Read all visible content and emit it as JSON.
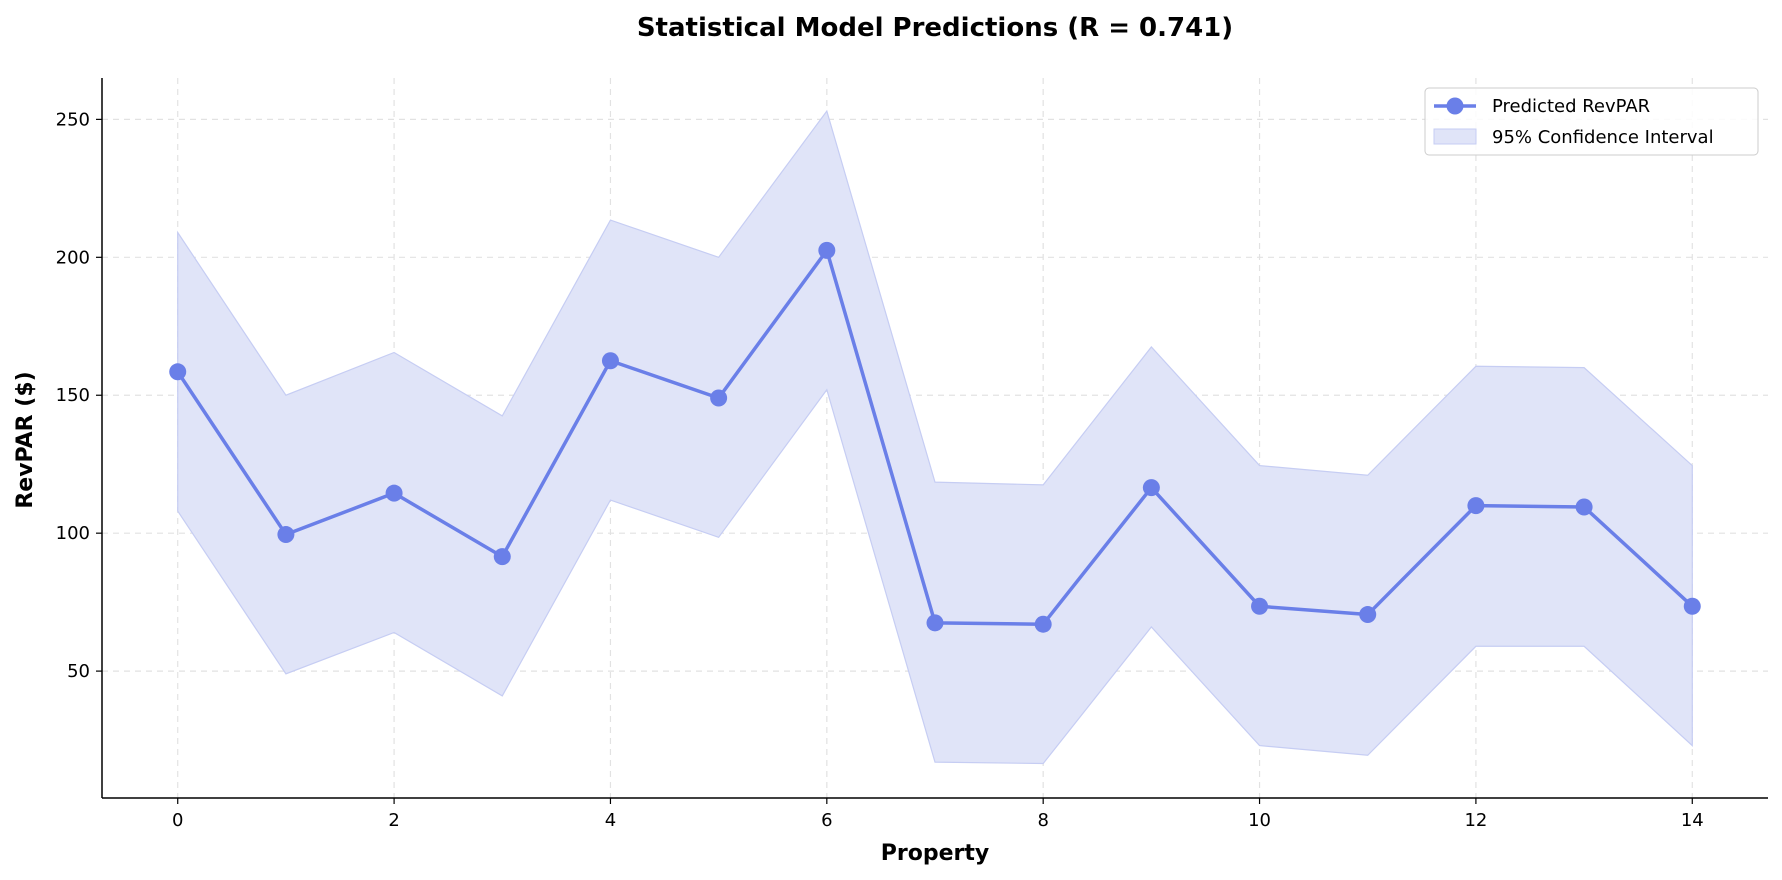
{
  "chart_data": {
    "type": "line",
    "title": "Statistical Model Predictions (R = 0.741)",
    "xlabel": "Property",
    "ylabel": "RevPAR ($)",
    "xlim": [
      -0.7,
      14.7
    ],
    "ylim": [
      4,
      265
    ],
    "grid": true,
    "legend_position": "top-right",
    "x_ticks": [
      0,
      2,
      4,
      6,
      8,
      10,
      12,
      14
    ],
    "y_ticks": [
      50,
      100,
      150,
      200,
      250
    ],
    "x": [
      0,
      1,
      2,
      3,
      4,
      5,
      6,
      7,
      8,
      9,
      10,
      11,
      12,
      13,
      14
    ],
    "series": [
      {
        "name": "Predicted RevPAR",
        "values": [
          158.5,
          99.5,
          114.5,
          91.5,
          162.5,
          149.0,
          202.5,
          67.5,
          67.0,
          116.5,
          73.5,
          70.5,
          110.0,
          109.5,
          73.5
        ]
      }
    ],
    "confidence_interval": {
      "name": "95% Confidence Interval",
      "upper": [
        209.0,
        150.0,
        165.5,
        142.5,
        213.5,
        200.0,
        253.0,
        118.5,
        117.5,
        167.5,
        124.5,
        121.0,
        160.5,
        160.0,
        124.5
      ],
      "lower": [
        108.0,
        49.0,
        64.0,
        41.0,
        112.0,
        98.5,
        152.0,
        17.0,
        16.5,
        66.0,
        23.0,
        19.5,
        59.0,
        59.0,
        23.0
      ]
    },
    "colors": {
      "line": "#6a7fe8",
      "band": "#e0e4f8",
      "band_edge": "#c6cdf3",
      "grid": "#e2e2e2"
    }
  }
}
